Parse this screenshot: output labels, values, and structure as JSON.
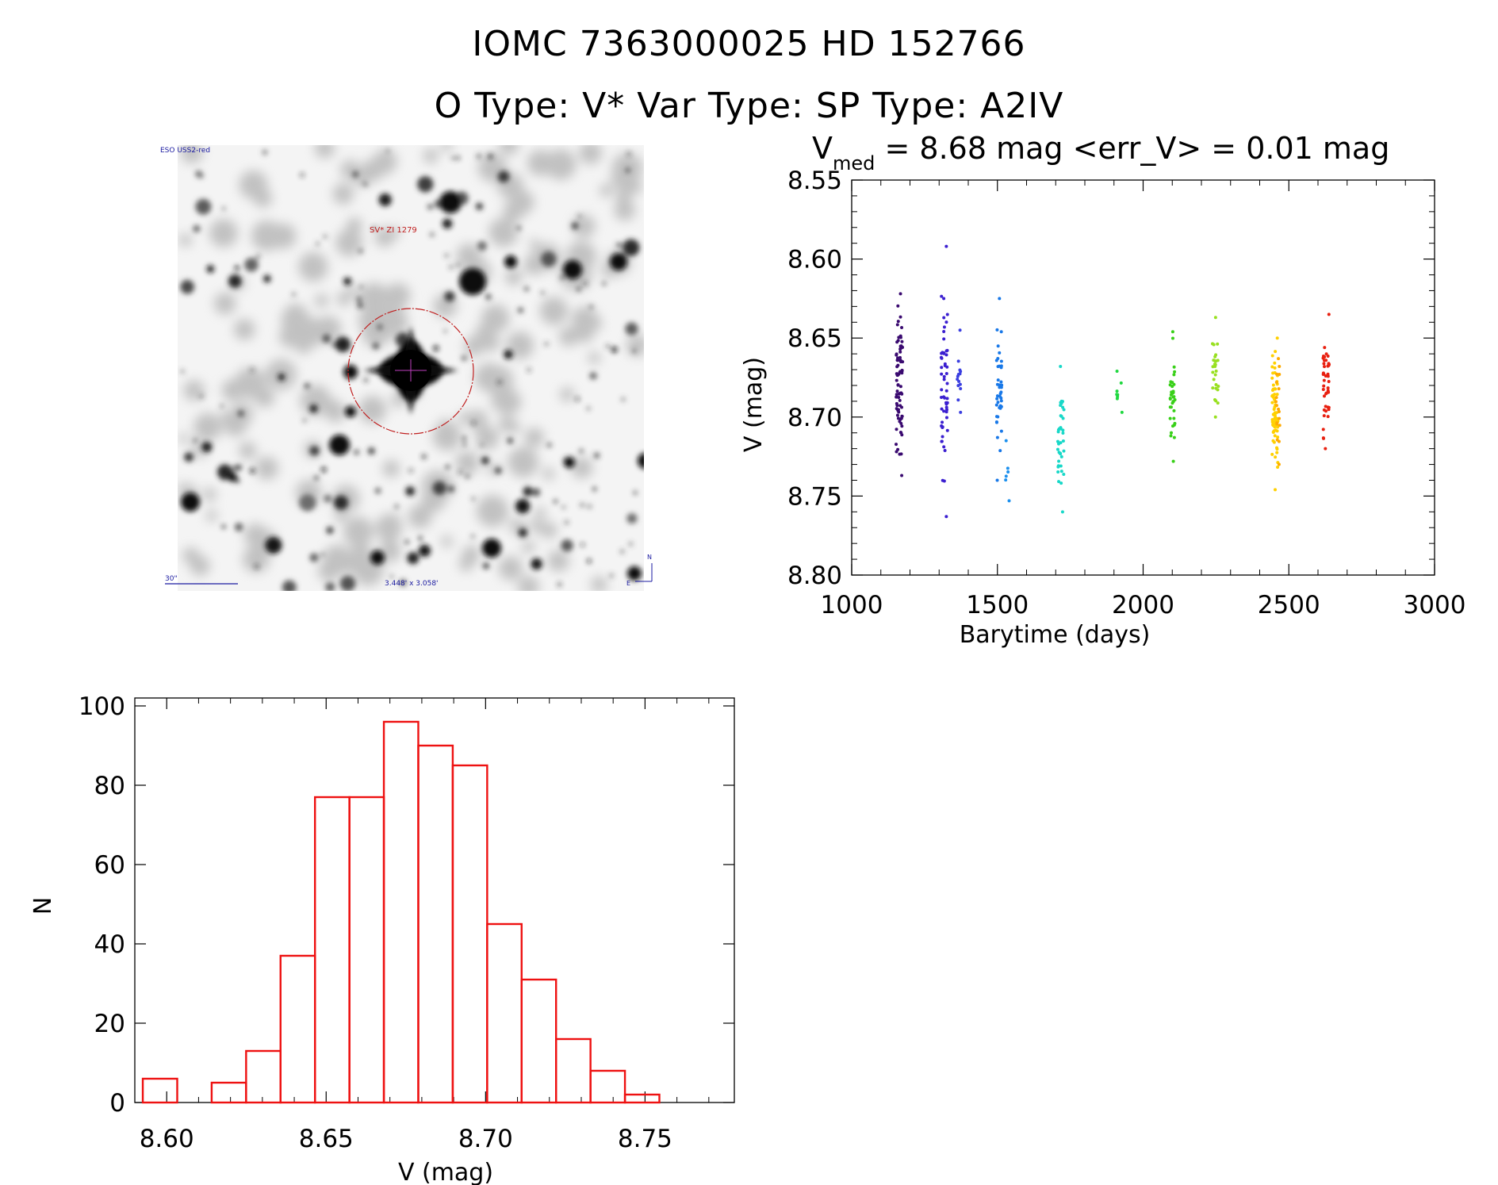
{
  "header": {
    "title_line1": "IOMC 7363000025    HD 152766",
    "title_line2": "O Type: V*  Var Type:    SP Type: A2IV"
  },
  "finder": {
    "survey_label": "ESO USS2-red",
    "object_label": "SV* ZI 1279",
    "scale_label": "30\"",
    "fov_label": "3.448' x 3.058'",
    "north_label": "N",
    "east_label": "E",
    "colors": {
      "label": "#1a1aa0",
      "object_label": "#c02020",
      "circle": "#c02020"
    }
  },
  "chart_data": [
    {
      "type": "scatter",
      "title_main": "V",
      "title_sub": "med",
      "title_rest": " = 8.68 mag <err_V> = 0.01 mag",
      "xlabel": "Barytime (days)",
      "ylabel": "V (mag)",
      "xlim": [
        1000,
        3000
      ],
      "ylim": [
        8.8,
        8.55
      ],
      "y_inverted": true,
      "xticks": [
        "1000",
        "1500",
        "2000",
        "2500",
        "3000"
      ],
      "yticks": [
        "8.55",
        "8.60",
        "8.65",
        "8.70",
        "8.75",
        "8.80"
      ],
      "groups": [
        {
          "x": [
            1155,
            1160,
            1166,
            1172
          ],
          "ymin": 8.622,
          "ymax": 8.737,
          "color": "#3a0a70",
          "n": 80
        },
        {
          "x": [
            1310,
            1318,
            1326
          ],
          "ymin": 8.592,
          "ymax": 8.763,
          "color": "#3b1fd0",
          "n": 55
        },
        {
          "x": [
            1365,
            1372
          ],
          "ymin": 8.645,
          "ymax": 8.697,
          "color": "#3b3fe0",
          "n": 14
        },
        {
          "x": [
            1500,
            1508,
            1514
          ],
          "ymin": 8.625,
          "ymax": 8.74,
          "color": "#1878e8",
          "n": 40
        },
        {
          "x": [
            1530,
            1538
          ],
          "ymin": 8.715,
          "ymax": 8.753,
          "color": "#1c90ee",
          "n": 6
        },
        {
          "x": [
            1710,
            1718,
            1726
          ],
          "ymin": 8.668,
          "ymax": 8.76,
          "color": "#18d8c8",
          "n": 38
        },
        {
          "x": [
            1895,
            1910,
            1925
          ],
          "ymin": 8.671,
          "ymax": 8.697,
          "color": "#20d840",
          "n": 8
        },
        {
          "x": [
            2095,
            2102,
            2108
          ],
          "ymin": 8.646,
          "ymax": 8.728,
          "color": "#38d018",
          "n": 35
        },
        {
          "x": [
            2240,
            2248,
            2256
          ],
          "ymin": 8.637,
          "ymax": 8.7,
          "color": "#98e020",
          "n": 28
        },
        {
          "x": [
            2445,
            2452,
            2460
          ],
          "ymin": 8.65,
          "ymax": 8.746,
          "color": "#ffd000",
          "n": 70
        },
        {
          "x": [
            2458,
            2466
          ],
          "ymin": 8.663,
          "ymax": 8.73,
          "color": "#ffaa00",
          "n": 18
        },
        {
          "x": [
            2620,
            2628,
            2636
          ],
          "ymin": 8.635,
          "ymax": 8.72,
          "color": "#e82010",
          "n": 45
        }
      ]
    },
    {
      "type": "bar",
      "subtype": "histogram",
      "xlabel": "V (mag)",
      "ylabel": "N",
      "xlim": [
        8.59,
        8.778
      ],
      "ylim": [
        0,
        100
      ],
      "xticks": [
        "8.60",
        "8.65",
        "8.70",
        "8.75"
      ],
      "yticks": [
        "0",
        "20",
        "40",
        "60",
        "80",
        "100"
      ],
      "bin_edges": [
        8.5925,
        8.6033,
        8.6141,
        8.6249,
        8.6357,
        8.6465,
        8.6573,
        8.6681,
        8.6789,
        8.6897,
        8.7005,
        8.7113,
        8.7221,
        8.7329,
        8.7437,
        8.7545,
        8.7653
      ],
      "values": [
        6,
        0,
        5,
        13,
        37,
        77,
        77,
        96,
        90,
        85,
        45,
        31,
        16,
        8,
        2,
        0
      ],
      "color": "#ee1111"
    }
  ]
}
